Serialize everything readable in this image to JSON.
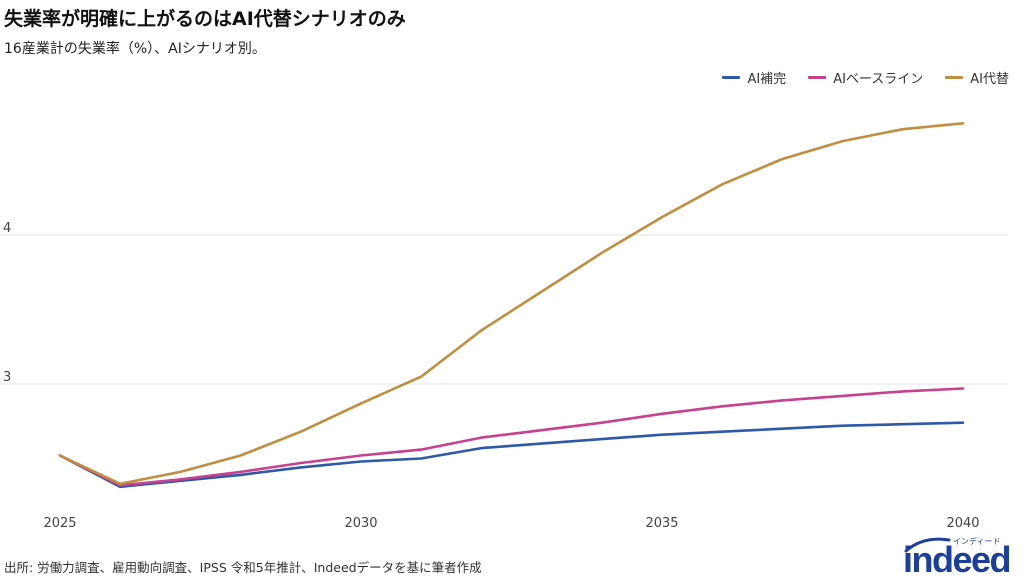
{
  "title": "失業率が明確に上がるのはAI代替シナリオのみ",
  "subtitle": "16産業計の失業率（%）、AIシナリオ別。",
  "source": "出所: 労働力調査、雇用動向調査、IPSS 令和5年推計、Indeedデータを基に筆者作成",
  "logo": {
    "text": "indeed",
    "kana": "インディード"
  },
  "colors": {
    "ai_complement": "#2c5aa8",
    "ai_baseline": "#c8418d",
    "ai_replacement": "#c18d3e",
    "grid": "#e3e3e3"
  },
  "chart_data": {
    "type": "line",
    "title": "失業率が明確に上がるのはAI代替シナリオのみ",
    "subtitle": "16産業計の失業率（%）、AIシナリオ別。",
    "xlabel": "",
    "ylabel": "",
    "x": [
      2025,
      2026,
      2027,
      2028,
      2029,
      2030,
      2031,
      2032,
      2033,
      2034,
      2035,
      2036,
      2037,
      2038,
      2039,
      2040
    ],
    "x_ticks": [
      2025,
      2030,
      2035,
      2040
    ],
    "y_ticks": [
      3,
      4
    ],
    "xlim": [
      2024.8,
      2040.3
    ],
    "ylim": [
      2.1,
      5.2
    ],
    "grid": "horizontal",
    "legend_position": "top-right",
    "series": [
      {
        "name": "AI補完",
        "color": "#2c5aa8",
        "values": [
          2.52,
          2.31,
          2.35,
          2.39,
          2.44,
          2.48,
          2.5,
          2.57,
          2.6,
          2.63,
          2.66,
          2.68,
          2.7,
          2.72,
          2.73,
          2.74
        ]
      },
      {
        "name": "AIベースライン",
        "color": "#c8418d",
        "values": [
          2.52,
          2.32,
          2.36,
          2.41,
          2.47,
          2.52,
          2.56,
          2.64,
          2.69,
          2.74,
          2.8,
          2.85,
          2.89,
          2.92,
          2.95,
          2.97
        ]
      },
      {
        "name": "AI代替",
        "color": "#c18d3e",
        "values": [
          2.52,
          2.33,
          2.41,
          2.52,
          2.68,
          2.87,
          3.05,
          3.36,
          3.62,
          3.88,
          4.12,
          4.34,
          4.51,
          4.63,
          4.71,
          4.75
        ]
      }
    ]
  }
}
